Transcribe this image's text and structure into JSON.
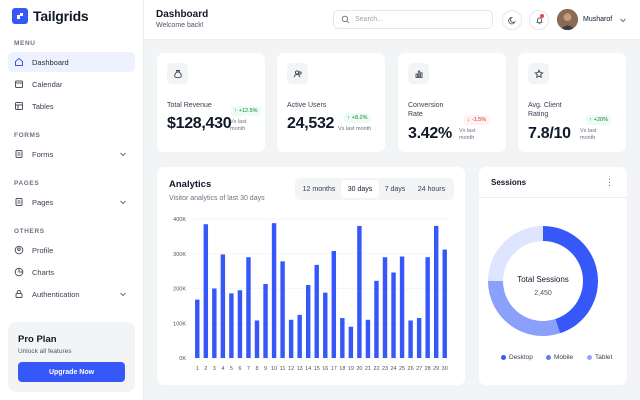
{
  "brand": {
    "name": "Tailgrids",
    "accent": "#3758f9"
  },
  "sidebar": {
    "menu_label": "MENU",
    "forms_label": "FORMS",
    "pages_label": "PAGES",
    "others_label": "OTHERS",
    "items": [
      {
        "label": "Dashboard",
        "icon": "home-icon",
        "active": true
      },
      {
        "label": "Calendar",
        "icon": "calendar-icon"
      },
      {
        "label": "Tables",
        "icon": "table-icon"
      },
      {
        "label": "Forms",
        "icon": "clipboard-icon",
        "has_children": true
      },
      {
        "label": "Pages",
        "icon": "clipboard-icon",
        "has_children": true
      },
      {
        "label": "Profile",
        "icon": "user-icon"
      },
      {
        "label": "Charts",
        "icon": "pie-chart-icon"
      },
      {
        "label": "Authentication",
        "icon": "lock-icon",
        "has_children": true
      }
    ],
    "promo": {
      "title": "Pro Plan",
      "subtitle": "Unlock all features",
      "button": "Upgrade Now"
    }
  },
  "header": {
    "title": "Dashboard",
    "subtitle": "Welcome back!",
    "search_placeholder": "Search...",
    "user_name": "Musharof"
  },
  "stats": [
    {
      "label": "Total Revenue",
      "value": "$128,430",
      "change": "+12.5%",
      "trend": "up",
      "compare": "Vs last month",
      "icon": "dollar-bag-icon"
    },
    {
      "label": "Active Users",
      "value": "24,532",
      "change": "+8.2%",
      "trend": "up",
      "compare": "Vs last month",
      "icon": "users-icon"
    },
    {
      "label": "Conversion Rate",
      "value": "3.42%",
      "change": "-1.5%",
      "trend": "down",
      "compare": "Vs last month",
      "icon": "bar-chart-icon"
    },
    {
      "label": "Avg. Client Rating",
      "value": "7.8/10",
      "change": "+20%",
      "trend": "up",
      "compare": "Vs last month",
      "icon": "star-icon"
    }
  ],
  "analytics": {
    "title": "Analytics",
    "subtitle": "Visitor analytics of last 30 days",
    "tabs": [
      "12 months",
      "30 days",
      "7 days",
      "24 hours"
    ],
    "active_tab": "30 days"
  },
  "sessions": {
    "title": "Sessions",
    "center_label": "Total Sessions",
    "center_value": "2,450",
    "legend": [
      {
        "name": "Desktop",
        "color": "#3758f9"
      },
      {
        "name": "Mobile",
        "color": "#5b7cfa"
      },
      {
        "name": "Tablet",
        "color": "#93a8fb"
      }
    ]
  },
  "chart_data": [
    {
      "type": "bar",
      "categories": [
        "1",
        "2",
        "3",
        "4",
        "5",
        "6",
        "7",
        "8",
        "9",
        "10",
        "11",
        "12",
        "13",
        "14",
        "15",
        "16",
        "17",
        "18",
        "19",
        "20",
        "21",
        "22",
        "23",
        "24",
        "25",
        "26",
        "27",
        "28",
        "29",
        "30"
      ],
      "values": [
        168,
        385,
        200,
        298,
        186,
        195,
        290,
        108,
        213,
        388,
        278,
        110,
        124,
        210,
        268,
        188,
        308,
        115,
        90,
        380,
        110,
        222,
        290,
        246,
        292,
        108,
        115,
        290,
        380,
        312
      ],
      "unit": "K",
      "ylim": [
        0,
        400
      ],
      "yticks": [
        "0K",
        "100K",
        "200K",
        "300K",
        "400K"
      ],
      "color": "#3758f9",
      "grid": true
    },
    {
      "type": "pie",
      "labels": [
        "Desktop",
        "Mobile",
        "Tablet"
      ],
      "values": [
        45,
        30,
        25
      ],
      "colors": [
        "#3758f9",
        "#8aa0fb",
        "#dfe5fe"
      ]
    }
  ]
}
